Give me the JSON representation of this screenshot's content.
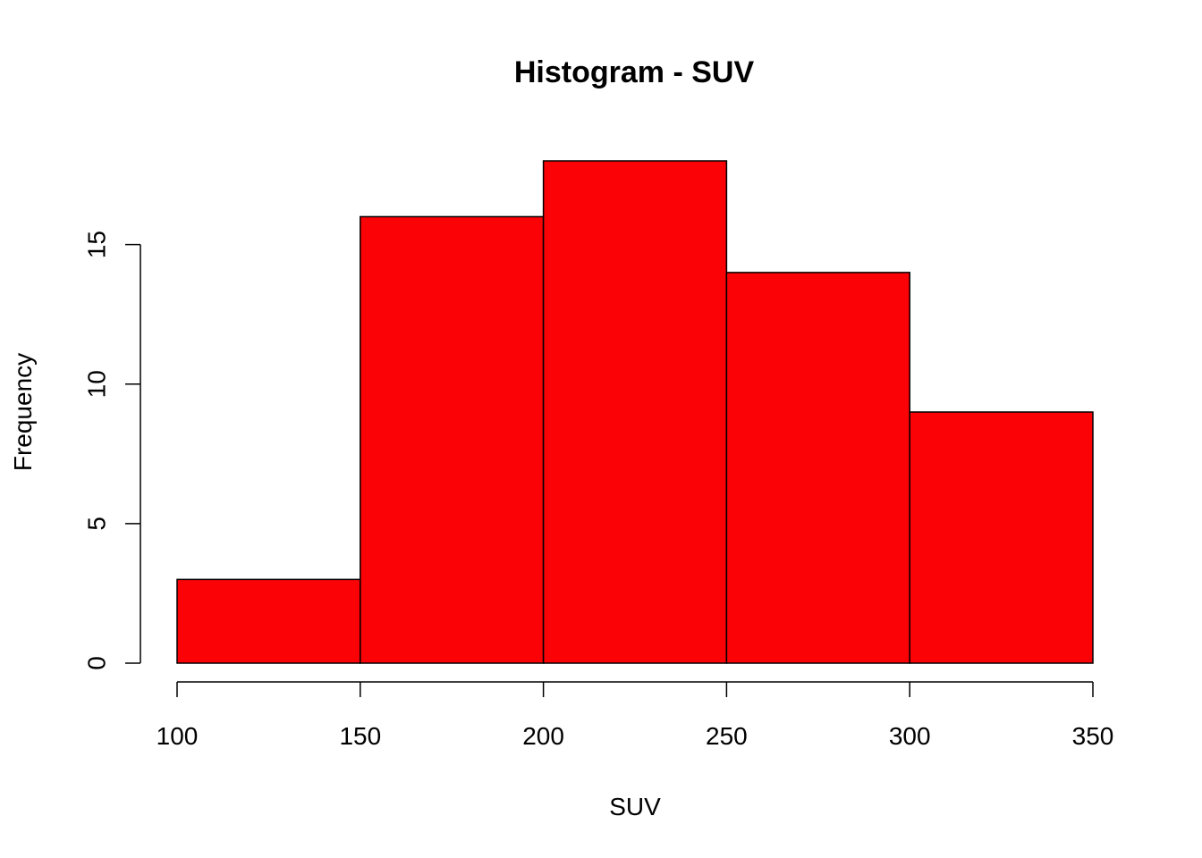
{
  "chart_data": {
    "type": "bar",
    "subtype": "histogram",
    "title": "Histogram - SUV",
    "xlabel": "SUV",
    "ylabel": "Frequency",
    "bin_edges": [
      100,
      150,
      200,
      250,
      300,
      350
    ],
    "values": [
      3,
      16,
      18,
      14,
      9
    ],
    "xlim": [
      100,
      350
    ],
    "ylim": [
      0,
      18
    ],
    "x_ticks": [
      100,
      150,
      200,
      250,
      300,
      350
    ],
    "y_ticks": [
      0,
      5,
      10,
      15
    ],
    "grid": false,
    "bar_color": "#fa0206",
    "edge_color": "#000000"
  }
}
